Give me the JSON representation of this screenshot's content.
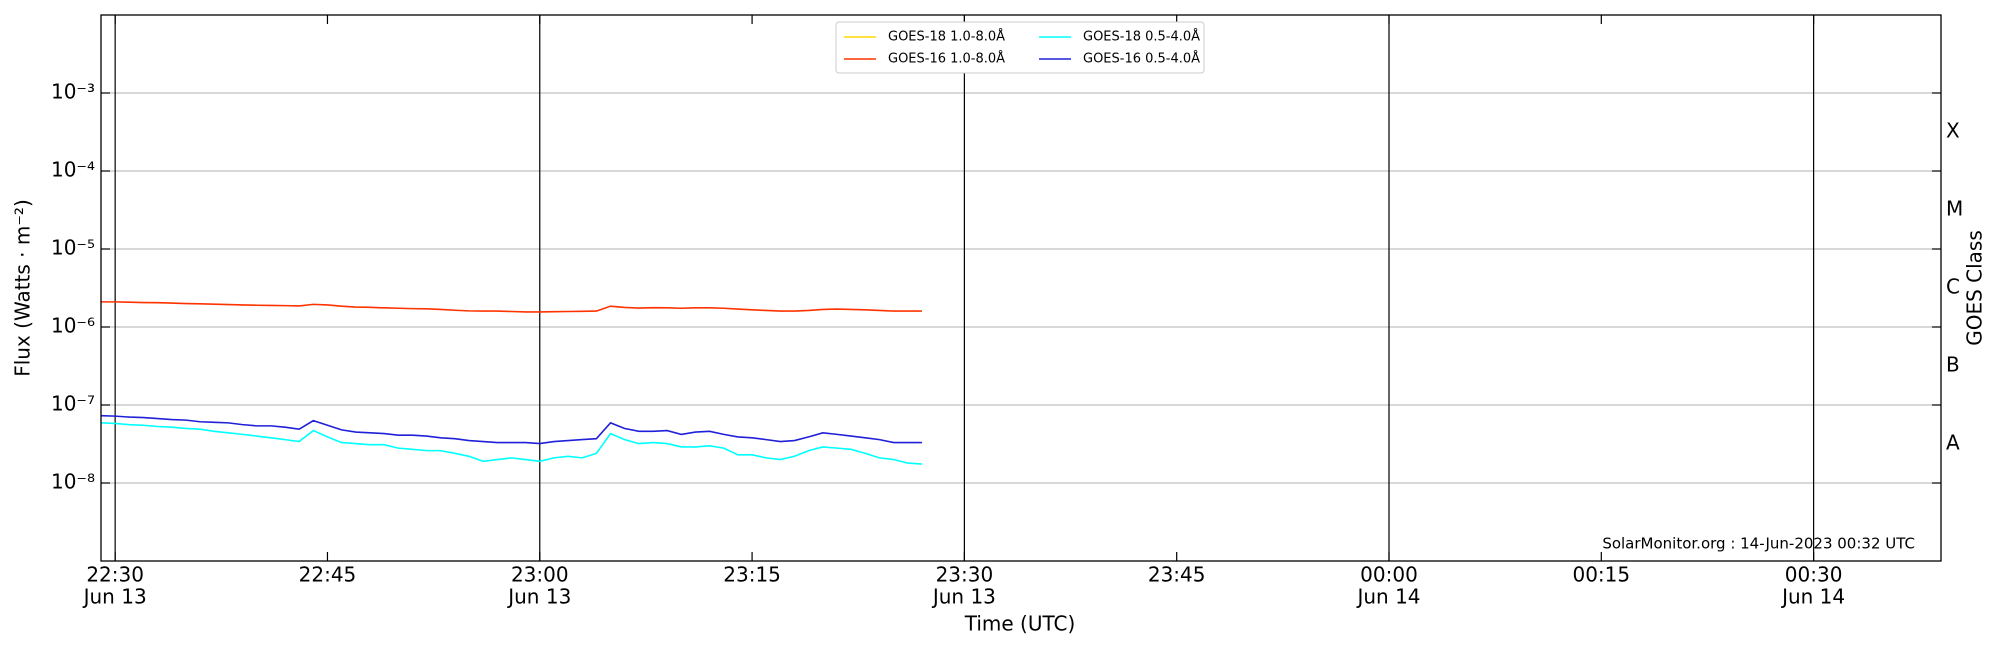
{
  "chart_data": {
    "type": "line",
    "ylabel": "Flux (Watts · m⁻²)",
    "xlabel": "Time (UTC)",
    "y2label": "GOES Class",
    "annotation": "SolarMonitor.org : 14-Jun-2023 00:32 UTC",
    "log_scale": true,
    "grid": true,
    "legend_position": "top",
    "x": [
      "Jun 13 22:29",
      "Jun 13 22:30",
      "Jun 13 22:31",
      "Jun 13 22:32",
      "Jun 13 22:33",
      "Jun 13 22:34",
      "Jun 13 22:35",
      "Jun 13 22:36",
      "Jun 13 22:37",
      "Jun 13 22:38",
      "Jun 13 22:39",
      "Jun 13 22:40",
      "Jun 13 22:41",
      "Jun 13 22:42",
      "Jun 13 22:43",
      "Jun 13 22:44",
      "Jun 13 22:45",
      "Jun 13 22:46",
      "Jun 13 22:47",
      "Jun 13 22:48",
      "Jun 13 22:49",
      "Jun 13 22:50",
      "Jun 13 22:51",
      "Jun 13 22:52",
      "Jun 13 22:53",
      "Jun 13 22:54",
      "Jun 13 22:55",
      "Jun 13 22:56",
      "Jun 13 22:57",
      "Jun 13 22:58",
      "Jun 13 22:59",
      "Jun 13 23:00",
      "Jun 13 23:01",
      "Jun 13 23:02",
      "Jun 13 23:03",
      "Jun 13 23:04",
      "Jun 13 23:05",
      "Jun 13 23:06",
      "Jun 13 23:07",
      "Jun 13 23:08",
      "Jun 13 23:09",
      "Jun 13 23:10",
      "Jun 13 23:11",
      "Jun 13 23:12",
      "Jun 13 23:13",
      "Jun 13 23:14",
      "Jun 13 23:15",
      "Jun 13 23:16",
      "Jun 13 23:17",
      "Jun 13 23:18",
      "Jun 13 23:19",
      "Jun 13 23:20",
      "Jun 13 23:21",
      "Jun 13 23:22",
      "Jun 13 23:23",
      "Jun 13 23:24",
      "Jun 13 23:25",
      "Jun 13 23:26",
      "Jun 13 23:27"
    ],
    "series": [
      {
        "name": "GOES-18 1.0-8.0Å",
        "color": "#ffd700",
        "values": [
          null,
          null,
          null,
          null,
          null,
          null,
          null,
          null,
          null,
          null,
          null,
          null,
          null,
          null,
          null,
          null,
          null,
          null,
          null,
          null,
          null,
          null,
          null,
          null,
          null,
          null,
          null,
          null,
          null,
          null,
          null,
          null,
          null,
          null,
          null,
          null,
          null,
          null,
          null,
          null,
          null,
          null,
          null,
          null,
          null,
          null,
          null,
          null,
          null,
          null,
          null,
          null,
          null,
          null,
          null,
          null,
          null,
          null,
          null
        ]
      },
      {
        "name": "GOES-16 1.0-8.0Å",
        "color": "#ff3300",
        "values": [
          2.1e-06,
          2.1e-06,
          2.08e-06,
          2.06e-06,
          2.05e-06,
          2.03e-06,
          2e-06,
          1.98e-06,
          1.96e-06,
          1.94e-06,
          1.92e-06,
          1.9e-06,
          1.89e-06,
          1.88e-06,
          1.86e-06,
          1.95e-06,
          1.92e-06,
          1.85e-06,
          1.8e-06,
          1.79e-06,
          1.76e-06,
          1.74e-06,
          1.72e-06,
          1.71e-06,
          1.68e-06,
          1.64e-06,
          1.61e-06,
          1.6e-06,
          1.6e-06,
          1.58e-06,
          1.56e-06,
          1.56e-06,
          1.57e-06,
          1.58e-06,
          1.59e-06,
          1.6e-06,
          1.85e-06,
          1.78e-06,
          1.75e-06,
          1.77e-06,
          1.76e-06,
          1.74e-06,
          1.76e-06,
          1.76e-06,
          1.74e-06,
          1.7e-06,
          1.66e-06,
          1.63e-06,
          1.6e-06,
          1.6e-06,
          1.63e-06,
          1.68e-06,
          1.7e-06,
          1.68e-06,
          1.66e-06,
          1.63e-06,
          1.6e-06,
          1.6e-06,
          1.6e-06
        ]
      },
      {
        "name": "GOES-18 0.5-4.0Å",
        "color": "#00ffff",
        "values": [
          5.9e-08,
          5.8e-08,
          5.6e-08,
          5.5e-08,
          5.3e-08,
          5.2e-08,
          5e-08,
          4.9e-08,
          4.6e-08,
          4.4e-08,
          4.2e-08,
          4e-08,
          3.8e-08,
          3.6e-08,
          3.4e-08,
          4.7e-08,
          3.9e-08,
          3.3e-08,
          3.2e-08,
          3.1e-08,
          3.1e-08,
          2.8e-08,
          2.7e-08,
          2.6e-08,
          2.6e-08,
          2.4e-08,
          2.2e-08,
          1.9e-08,
          2e-08,
          2.1e-08,
          2e-08,
          1.9e-08,
          2.1e-08,
          2.2e-08,
          2.1e-08,
          2.4e-08,
          4.3e-08,
          3.6e-08,
          3.2e-08,
          3.3e-08,
          3.2e-08,
          2.9e-08,
          2.9e-08,
          3e-08,
          2.8e-08,
          2.3e-08,
          2.3e-08,
          2.1e-08,
          2e-08,
          2.2e-08,
          2.6e-08,
          2.9e-08,
          2.8e-08,
          2.7e-08,
          2.4e-08,
          2.1e-08,
          2e-08,
          1.8e-08,
          1.75e-08
        ]
      },
      {
        "name": "GOES-16 0.5-4.0Å",
        "color": "#2020d8",
        "values": [
          7.3e-08,
          7.2e-08,
          7e-08,
          6.9e-08,
          6.7e-08,
          6.5e-08,
          6.4e-08,
          6.1e-08,
          6e-08,
          5.9e-08,
          5.6e-08,
          5.4e-08,
          5.4e-08,
          5.2e-08,
          4.9e-08,
          6.3e-08,
          5.5e-08,
          4.8e-08,
          4.5e-08,
          4.4e-08,
          4.3e-08,
          4.1e-08,
          4.1e-08,
          4e-08,
          3.8e-08,
          3.7e-08,
          3.5e-08,
          3.4e-08,
          3.3e-08,
          3.3e-08,
          3.3e-08,
          3.2e-08,
          3.4e-08,
          3.5e-08,
          3.6e-08,
          3.7e-08,
          5.9e-08,
          5e-08,
          4.6e-08,
          4.6e-08,
          4.7e-08,
          4.2e-08,
          4.5e-08,
          4.6e-08,
          4.2e-08,
          3.9e-08,
          3.8e-08,
          3.6e-08,
          3.4e-08,
          3.5e-08,
          3.9e-08,
          4.4e-08,
          4.2e-08,
          4e-08,
          3.8e-08,
          3.6e-08,
          3.3e-08,
          3.3e-08,
          3.3e-08
        ]
      }
    ],
    "xlim": [
      "Jun 13 22:29",
      "Jun 14 00:39"
    ],
    "xticks": [
      {
        "value": "Jun 13 22:30",
        "label": [
          "22:30",
          "Jun 13"
        ]
      },
      {
        "value": "Jun 13 22:45",
        "label": [
          "22:45"
        ]
      },
      {
        "value": "Jun 13 23:00",
        "label": [
          "23:00",
          "Jun 13"
        ]
      },
      {
        "value": "Jun 13 23:15",
        "label": [
          "23:15"
        ]
      },
      {
        "value": "Jun 13 23:30",
        "label": [
          "23:30",
          "Jun 13"
        ]
      },
      {
        "value": "Jun 13 23:45",
        "label": [
          "23:45"
        ]
      },
      {
        "value": "Jun 14 00:00",
        "label": [
          "00:00",
          "Jun 14"
        ]
      },
      {
        "value": "Jun 14 00:15",
        "label": [
          "00:15"
        ]
      },
      {
        "value": "Jun 14 00:30",
        "label": [
          "00:30",
          "Jun 14"
        ]
      }
    ],
    "ylim": [
      1e-09,
      0.01
    ],
    "yticks": [
      {
        "value": 1e-08,
        "label": "10⁻⁸"
      },
      {
        "value": 1e-07,
        "label": "10⁻⁷"
      },
      {
        "value": 1e-06,
        "label": "10⁻⁶"
      },
      {
        "value": 1e-05,
        "label": "10⁻⁵"
      },
      {
        "value": 0.0001,
        "label": "10⁻⁴"
      },
      {
        "value": 0.001,
        "label": "10⁻³"
      }
    ],
    "y2lim": [
      1e-09,
      0.01
    ],
    "y2ticks": [
      {
        "value": 3.16e-08,
        "label": "A"
      },
      {
        "value": 3.16e-07,
        "label": "B"
      },
      {
        "value": 3.16e-06,
        "label": "C"
      },
      {
        "value": 3.16e-05,
        "label": "M"
      },
      {
        "value": 0.000316,
        "label": "X"
      }
    ]
  }
}
